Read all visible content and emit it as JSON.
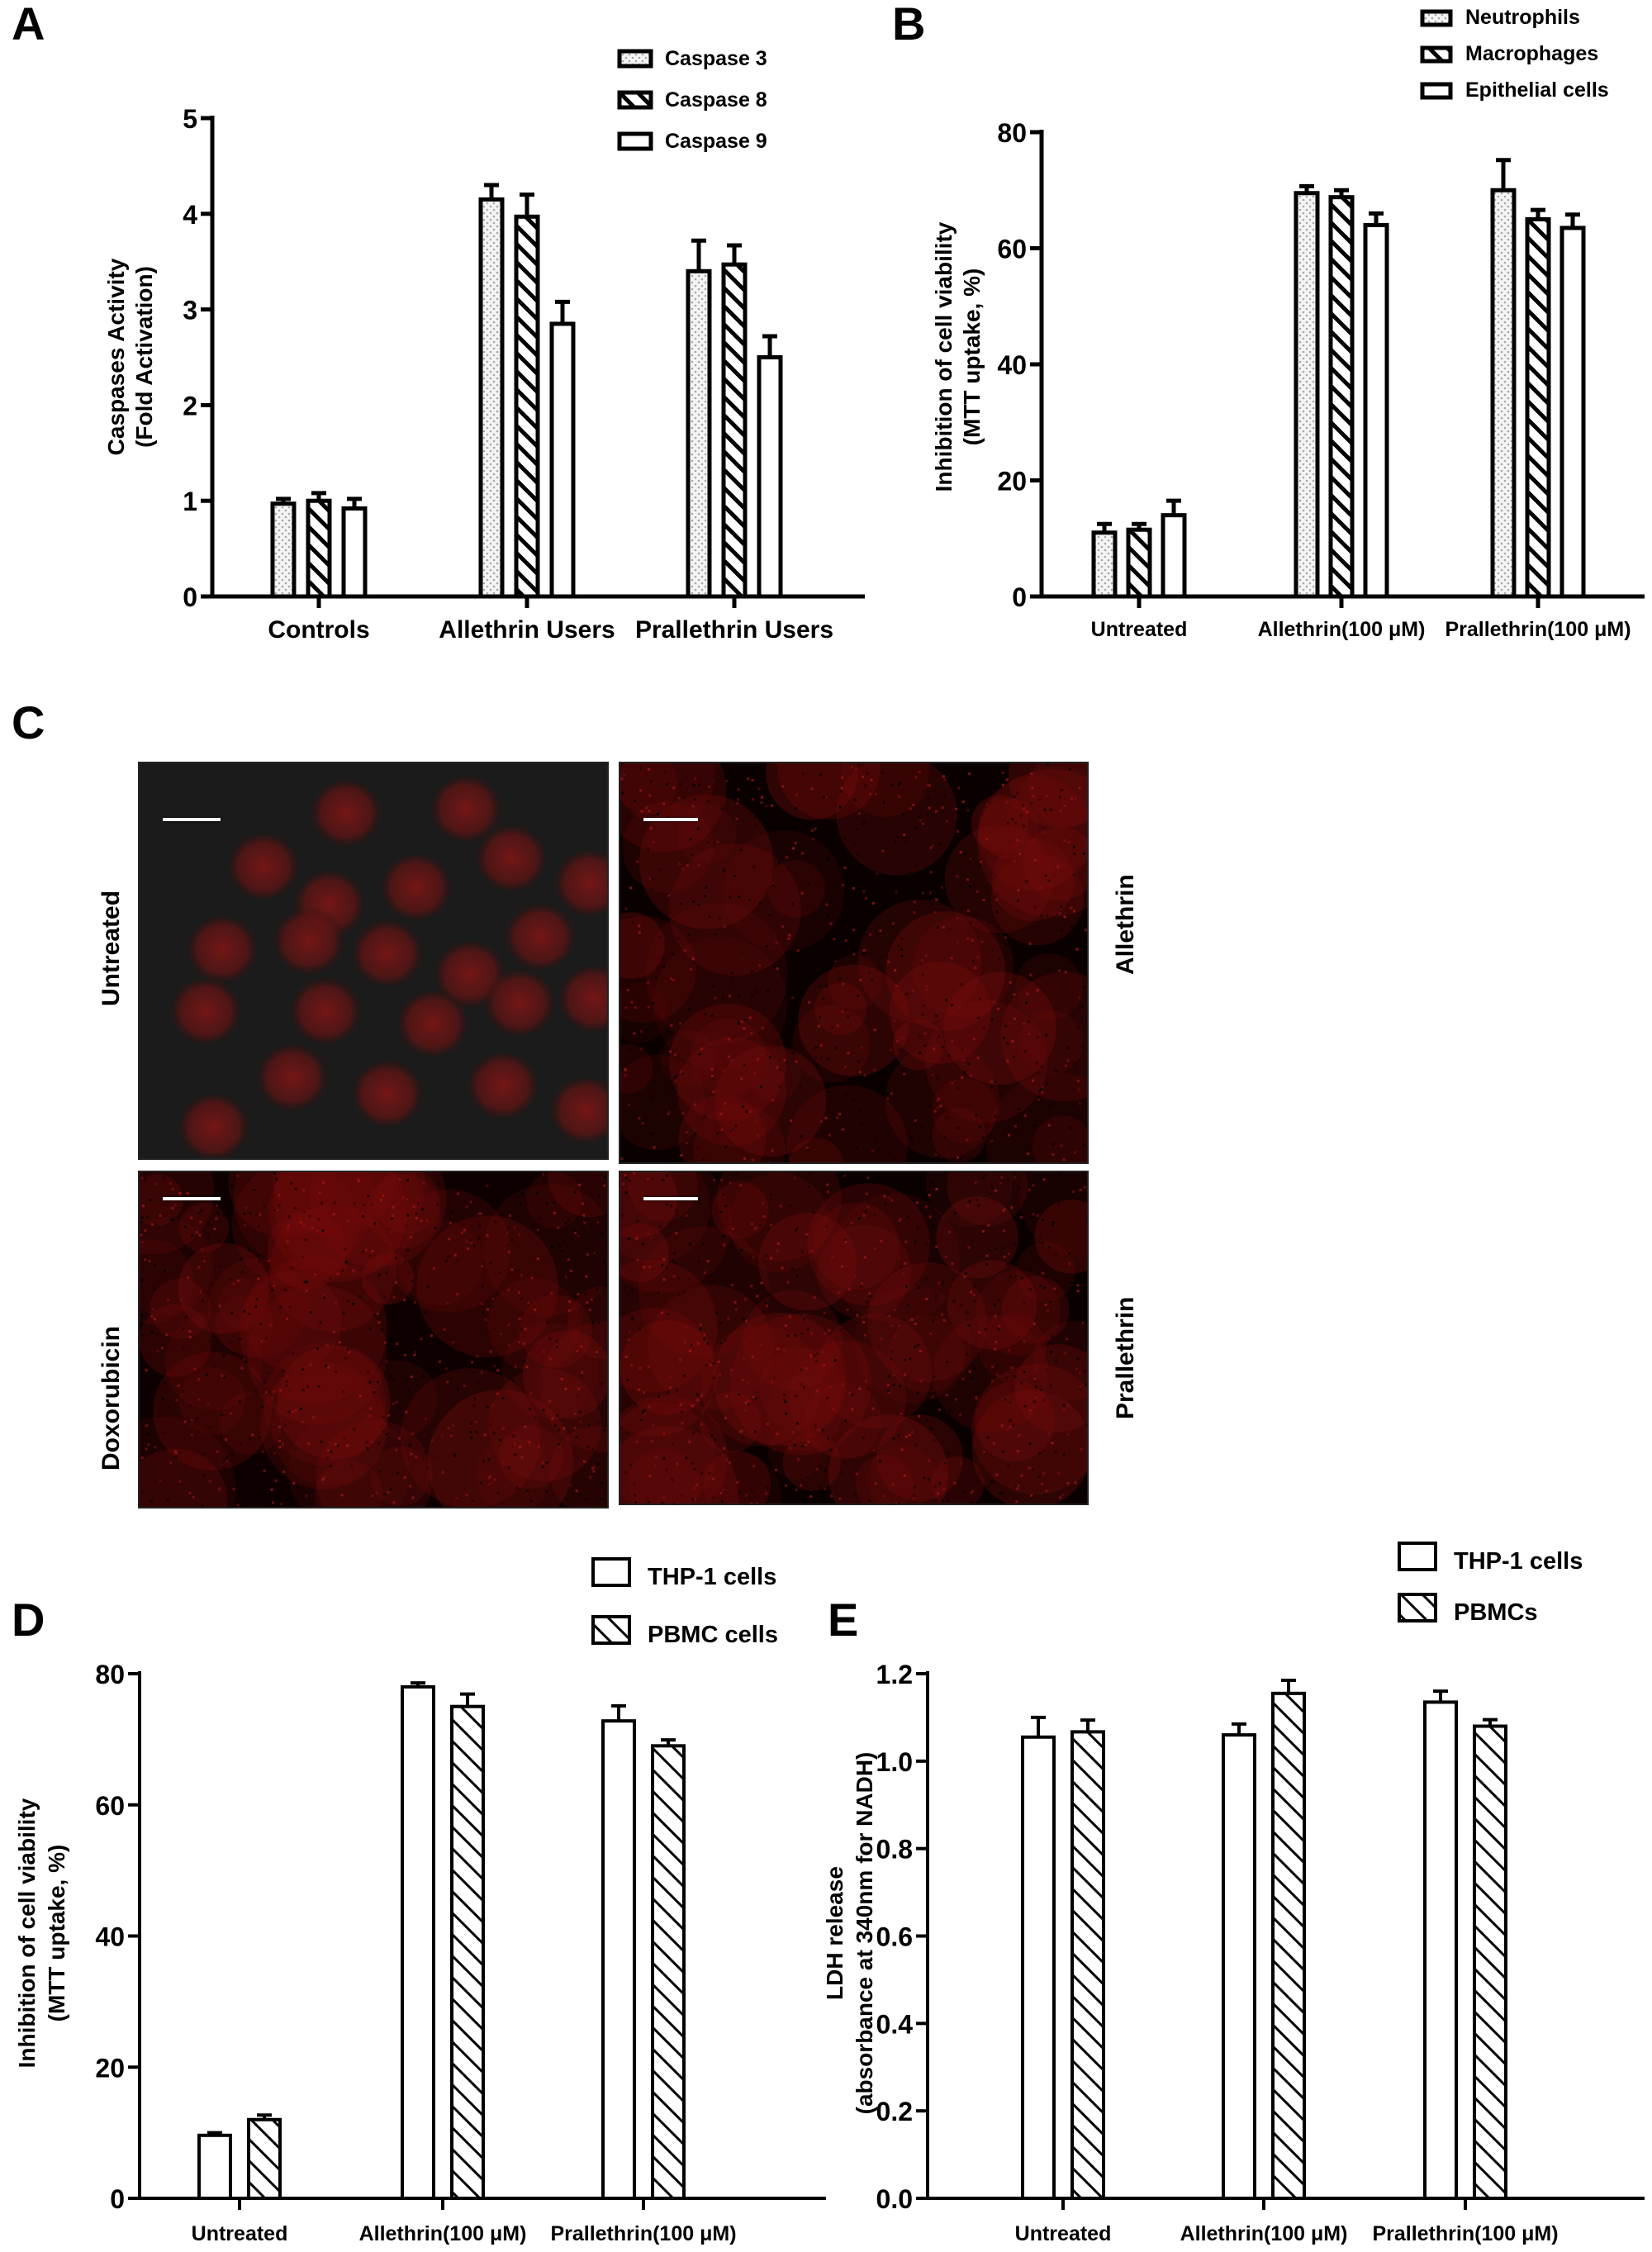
{
  "figure": {
    "panels": {
      "A": {
        "letter": "A"
      },
      "B": {
        "letter": "B"
      },
      "C": {
        "letter": "C"
      },
      "D": {
        "letter": "D"
      },
      "E": {
        "letter": "E"
      }
    },
    "micrographs": {
      "labels": {
        "top_left": "Untreated",
        "top_right": "Allethrin",
        "bottom_left": "Doxorubicin",
        "bottom_right": "Prallethrin"
      }
    }
  },
  "colors": {
    "bar_outline": "#000000",
    "bar_fill": "#ffffff",
    "dot_fill": "#bdbdbd",
    "micro_untreated_bg": "#1b1b1b",
    "micro_red": "#8a1010",
    "micro_dark": "#0a0000"
  },
  "chart_data": [
    {
      "panel": "A",
      "type": "bar",
      "title": "",
      "xlabel": "",
      "ylabel": "Caspases Activity (Fold Activation)",
      "ylabel_lines": [
        "Caspases Activity",
        "(Fold Activation)"
      ],
      "ylim": [
        0,
        5
      ],
      "yticks": [
        0,
        1,
        2,
        3,
        4,
        5
      ],
      "grid": false,
      "legend_position": "top-right",
      "categories": [
        "Controls",
        "Allethrin Users",
        "Prallethrin Users"
      ],
      "series": [
        {
          "name": "Caspase 3",
          "pattern": "dotted",
          "values": [
            0.97,
            4.15,
            3.4
          ],
          "errors": [
            0.05,
            0.15,
            0.32
          ]
        },
        {
          "name": "Caspase 8",
          "pattern": "hatched",
          "values": [
            1.0,
            3.97,
            3.47
          ],
          "errors": [
            0.08,
            0.23,
            0.2
          ]
        },
        {
          "name": "Caspase 9",
          "pattern": "open",
          "values": [
            0.92,
            2.85,
            2.5
          ],
          "errors": [
            0.1,
            0.23,
            0.22
          ]
        }
      ]
    },
    {
      "panel": "B",
      "type": "bar",
      "title": "",
      "xlabel": "",
      "ylabel": "Inhibition of cell viability (MTT uptake, %)",
      "ylabel_lines": [
        "Inhibition of cell viability",
        "(MTT uptake, %)"
      ],
      "ylim": [
        0,
        80
      ],
      "yticks": [
        0,
        20,
        40,
        60,
        80
      ],
      "grid": false,
      "legend_position": "top-right",
      "categories": [
        "Untreated",
        "Allethrin(100 μM)",
        "Prallethrin(100 μM)"
      ],
      "series": [
        {
          "name": "Neutrophils",
          "pattern": "dotted",
          "values": [
            11,
            69.5,
            70
          ],
          "errors": [
            1.5,
            1.2,
            5.2
          ]
        },
        {
          "name": "Macrophages",
          "pattern": "hatched",
          "values": [
            11.5,
            68.8,
            65
          ],
          "errors": [
            1.0,
            1.2,
            1.6
          ]
        },
        {
          "name": "Epithelial cells",
          "pattern": "open",
          "values": [
            14,
            64,
            63.5
          ],
          "errors": [
            2.5,
            2.0,
            2.3
          ]
        }
      ]
    },
    {
      "panel": "D",
      "type": "bar",
      "title": "",
      "xlabel": "",
      "ylabel": "Inhibition of cell viability (MTT uptake, %)",
      "ylabel_lines": [
        "Inhibition of cell viability",
        "(MTT uptake, %)"
      ],
      "ylim": [
        0,
        80
      ],
      "yticks": [
        0,
        20,
        40,
        60,
        80
      ],
      "grid": false,
      "legend_position": "top-right",
      "categories": [
        "Untreated",
        "Allethrin(100 μM)",
        "Prallethrin(100 μM)"
      ],
      "series": [
        {
          "name": "THP-1 cells",
          "pattern": "open",
          "values": [
            9.6,
            78,
            72.8
          ],
          "errors": [
            0.4,
            0.6,
            2.3
          ]
        },
        {
          "name": "PBMC cells",
          "pattern": "hatched",
          "values": [
            12,
            75,
            69
          ],
          "errors": [
            0.7,
            1.9,
            0.9
          ]
        }
      ]
    },
    {
      "panel": "E",
      "type": "bar",
      "title": "",
      "xlabel": "",
      "ylabel": "LDH release (absorbance at 340nm for NADH)",
      "ylabel_lines": [
        "LDH release",
        "(absorbance at 340nm for NADH)"
      ],
      "ylim": [
        0,
        1.2
      ],
      "yticks": [
        "0.0",
        "0.2",
        "0.4",
        "0.6",
        "0.8",
        "1.0",
        "1.2"
      ],
      "grid": false,
      "legend_position": "top-right",
      "categories": [
        "Untreated",
        "Allethrin(100 μM)",
        "Prallethrin(100 μM)"
      ],
      "series": [
        {
          "name": "THP-1 cells",
          "pattern": "open",
          "values": [
            1.055,
            1.06,
            1.135
          ],
          "errors": [
            0.045,
            0.025,
            0.025
          ]
        },
        {
          "name": "PBMCs",
          "pattern": "hatched",
          "values": [
            1.067,
            1.155,
            1.08
          ],
          "errors": [
            0.027,
            0.03,
            0.015
          ]
        }
      ]
    }
  ]
}
